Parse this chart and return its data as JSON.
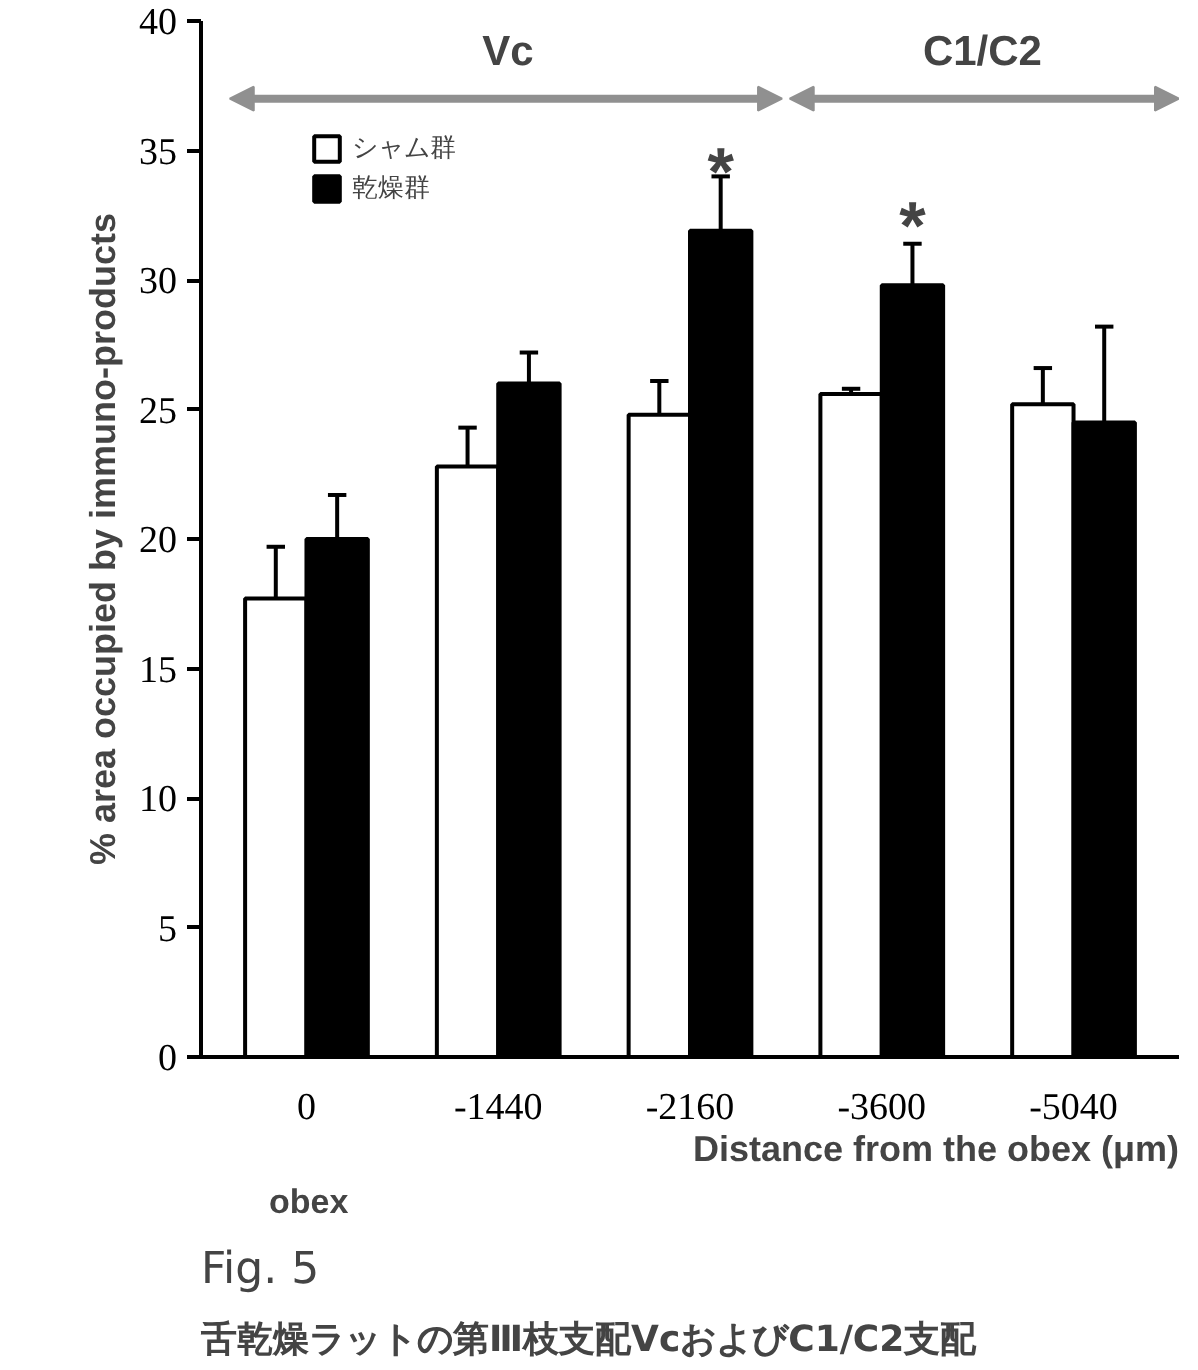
{
  "chart_data": {
    "type": "bar",
    "categories": [
      "0",
      "-1440",
      "-2160",
      "-3600",
      "-5040"
    ],
    "series": [
      {
        "name": "シャム群",
        "color": "#ffffff",
        "values": [
          17.7,
          22.8,
          24.8,
          25.6,
          25.2
        ],
        "errors": [
          [
            17.7,
            19.7
          ],
          [
            22.8,
            24.3
          ],
          [
            24.8,
            26.1
          ],
          [
            25.6,
            25.8
          ],
          [
            25.2,
            26.6
          ]
        ]
      },
      {
        "name": "乾燥群",
        "color": "#000000",
        "values": [
          20.0,
          26.0,
          31.9,
          29.8,
          24.5
        ],
        "errors": [
          [
            20.0,
            21.7
          ],
          [
            26.0,
            27.2
          ],
          [
            31.9,
            34.0
          ],
          [
            29.8,
            31.4
          ],
          [
            24.5,
            28.2
          ]
        ]
      }
    ],
    "ylim": [
      0,
      40
    ],
    "yticks": [
      0,
      5,
      10,
      15,
      20,
      25,
      30,
      35,
      40
    ],
    "xlabel": "Distance from the obex (μm)",
    "ylabel": "% area occupied by immuno-products",
    "annotations": [
      "Vc",
      "C1/C2",
      "*",
      "*",
      "obex",
      "Fig. 5",
      "舌乾燥ラットの第Ⅲ枝支配VcおよびC1/C2支配"
    ],
    "legend": "top left",
    "grid": false
  }
}
